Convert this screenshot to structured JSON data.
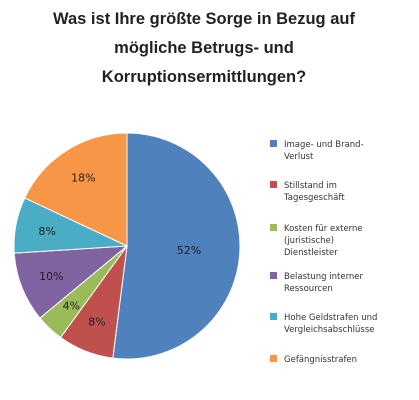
{
  "chart_data": {
    "type": "pie",
    "title": "Was ist Ihre größte Sorge in Bezug auf mögliche Betrugs- und Korruptionsermittlungen?",
    "title_lines": [
      "Was ist Ihre größte Sorge in Bezug auf",
      "mögliche Betrugs- und",
      "Korruptionsermittlungen?"
    ],
    "legend_position": "right",
    "slices": [
      {
        "name": "Image- und Brand-Verlust",
        "legend_lines": [
          "Image- und Brand-",
          "Verlust"
        ],
        "value": 52,
        "label": "52%",
        "color": "#4f81bd"
      },
      {
        "name": "Stillstand im Tagesgeschäft",
        "legend_lines": [
          "Stillstand im",
          "Tagesgeschäft"
        ],
        "value": 8,
        "label": "8%",
        "color": "#c0504d"
      },
      {
        "name": "Kosten für externe (juristische) Dienstleister",
        "legend_lines": [
          "Kosten für externe",
          "(juristische)",
          "Dienstleister"
        ],
        "value": 4,
        "label": "4%",
        "color": "#9bbb59"
      },
      {
        "name": "Belastung interner Ressourcen",
        "legend_lines": [
          "Belastung interner",
          "Ressourcen"
        ],
        "value": 10,
        "label": "10%",
        "color": "#8064a2"
      },
      {
        "name": "Hohe Geldstrafen und Vergleichsabschlüsse",
        "legend_lines": [
          "Hohe Geldstrafen und",
          "Vergleichsabschlüsse"
        ],
        "value": 8,
        "label": "8%",
        "color": "#4bacc6"
      },
      {
        "name": "Gefängnisstrafen",
        "legend_lines": [
          "Gefängnisstrafen"
        ],
        "value": 18,
        "label": "18%",
        "color": "#f79646"
      }
    ]
  }
}
